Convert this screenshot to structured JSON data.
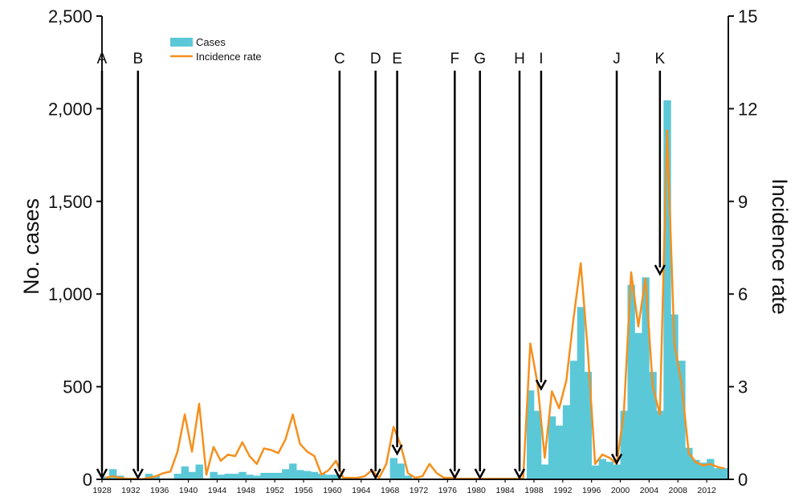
{
  "chart_data": {
    "type": "bar",
    "title": "",
    "ylabel": "No. cases",
    "y2label": "Incidence rate",
    "xlabel": "",
    "ylim": [
      0,
      2500
    ],
    "y2lim": [
      0,
      15
    ],
    "yticks": [
      "0",
      "500",
      "1,000",
      "1,500",
      "2,000",
      "2,500"
    ],
    "y2ticks": [
      "0",
      "3",
      "6",
      "9",
      "12",
      "15"
    ],
    "xticks": [
      "1928",
      "1932",
      "1936",
      "1940",
      "1944",
      "1948",
      "1952",
      "1956",
      "1960",
      "1964",
      "1968",
      "1972",
      "1976",
      "1980",
      "1984",
      "1988",
      "1992",
      "1996",
      "2000",
      "2004",
      "2008",
      "2012"
    ],
    "x": [
      1928,
      1929,
      1930,
      1931,
      1932,
      1933,
      1934,
      1935,
      1936,
      1937,
      1938,
      1939,
      1940,
      1941,
      1942,
      1943,
      1944,
      1945,
      1946,
      1947,
      1948,
      1949,
      1950,
      1951,
      1952,
      1953,
      1954,
      1955,
      1956,
      1957,
      1958,
      1959,
      1960,
      1961,
      1962,
      1963,
      1964,
      1965,
      1966,
      1967,
      1968,
      1969,
      1970,
      1971,
      1972,
      1973,
      1974,
      1975,
      1976,
      1977,
      1978,
      1979,
      1980,
      1981,
      1982,
      1983,
      1984,
      1985,
      1986,
      1987,
      1988,
      1989,
      1990,
      1991,
      1992,
      1993,
      1994,
      1995,
      1996,
      1997,
      1998,
      1999,
      2000,
      2001,
      2002,
      2003,
      2004,
      2005,
      2006,
      2007,
      2008,
      2009,
      2010,
      2011,
      2012,
      2013,
      2014
    ],
    "series": [
      {
        "name": "Cases",
        "kind": "bar",
        "axis": "left",
        "color": "#5bc8d8",
        "values": [
          15,
          55,
          20,
          5,
          5,
          0,
          30,
          20,
          5,
          5,
          30,
          70,
          40,
          80,
          5,
          40,
          25,
          30,
          30,
          40,
          25,
          20,
          35,
          35,
          35,
          55,
          85,
          50,
          45,
          40,
          30,
          25,
          25,
          5,
          5,
          5,
          5,
          5,
          5,
          5,
          115,
          85,
          20,
          5,
          5,
          5,
          5,
          5,
          5,
          5,
          5,
          5,
          5,
          5,
          5,
          5,
          5,
          5,
          5,
          480,
          370,
          80,
          340,
          290,
          400,
          640,
          930,
          580,
          75,
          110,
          95,
          80,
          370,
          1050,
          790,
          1090,
          580,
          370,
          2045,
          890,
          640,
          170,
          105,
          90,
          110,
          60,
          60
        ]
      },
      {
        "name": "Incidence rate",
        "kind": "line",
        "axis": "right",
        "color": "#f5901e",
        "values": [
          0.05,
          0.1,
          0.05,
          0.02,
          0.02,
          0,
          0.05,
          0.1,
          0.2,
          0.25,
          0.9,
          2.1,
          0.9,
          2.45,
          0.15,
          1.05,
          0.6,
          0.8,
          0.75,
          1.2,
          0.75,
          0.5,
          1.0,
          0.95,
          0.85,
          1.3,
          2.1,
          1.15,
          0.9,
          0.75,
          0.15,
          0.3,
          0.6,
          0.05,
          0.05,
          0.05,
          0.1,
          0.3,
          0.05,
          0.5,
          1.7,
          1.1,
          0.2,
          0.05,
          0.1,
          0.5,
          0.2,
          0.05,
          0.05,
          0.02,
          0.02,
          0.02,
          0.02,
          0.02,
          0.02,
          0.02,
          0.02,
          0.02,
          0.02,
          4.4,
          3.1,
          0.7,
          2.85,
          2.3,
          3.2,
          5.2,
          7.0,
          4.1,
          0.5,
          0.8,
          0.7,
          0.5,
          2.2,
          6.7,
          4.95,
          6.5,
          3.0,
          2.1,
          11.3,
          4.4,
          3.1,
          0.85,
          0.55,
          0.45,
          0.5,
          0.4,
          0.35
        ]
      }
    ],
    "legend": {
      "position": "top-left",
      "entries": [
        "Cases",
        "Incidence rate"
      ]
    },
    "annotations": [
      {
        "label": "A",
        "x": 1928,
        "tip": 0
      },
      {
        "label": "B",
        "x": 1933,
        "tip": 0
      },
      {
        "label": "C",
        "x": 1961,
        "tip": 0
      },
      {
        "label": "D",
        "x": 1966,
        "tip": 0
      },
      {
        "label": "E",
        "x": 1969,
        "tip": 130
      },
      {
        "label": "F",
        "x": 1977,
        "tip": 0
      },
      {
        "label": "G",
        "x": 1980.5,
        "tip": 0
      },
      {
        "label": "H",
        "x": 1986,
        "tip": 0
      },
      {
        "label": "I",
        "x": 1989,
        "tip": 480
      },
      {
        "label": "J",
        "x": 1999.5,
        "tip": 80
      },
      {
        "label": "K",
        "x": 2005.5,
        "tip": 1100
      }
    ],
    "colors": {
      "bar": "#5bc8d8",
      "line": "#f5901e",
      "axis": "#111111",
      "arrow": "#000000"
    }
  }
}
